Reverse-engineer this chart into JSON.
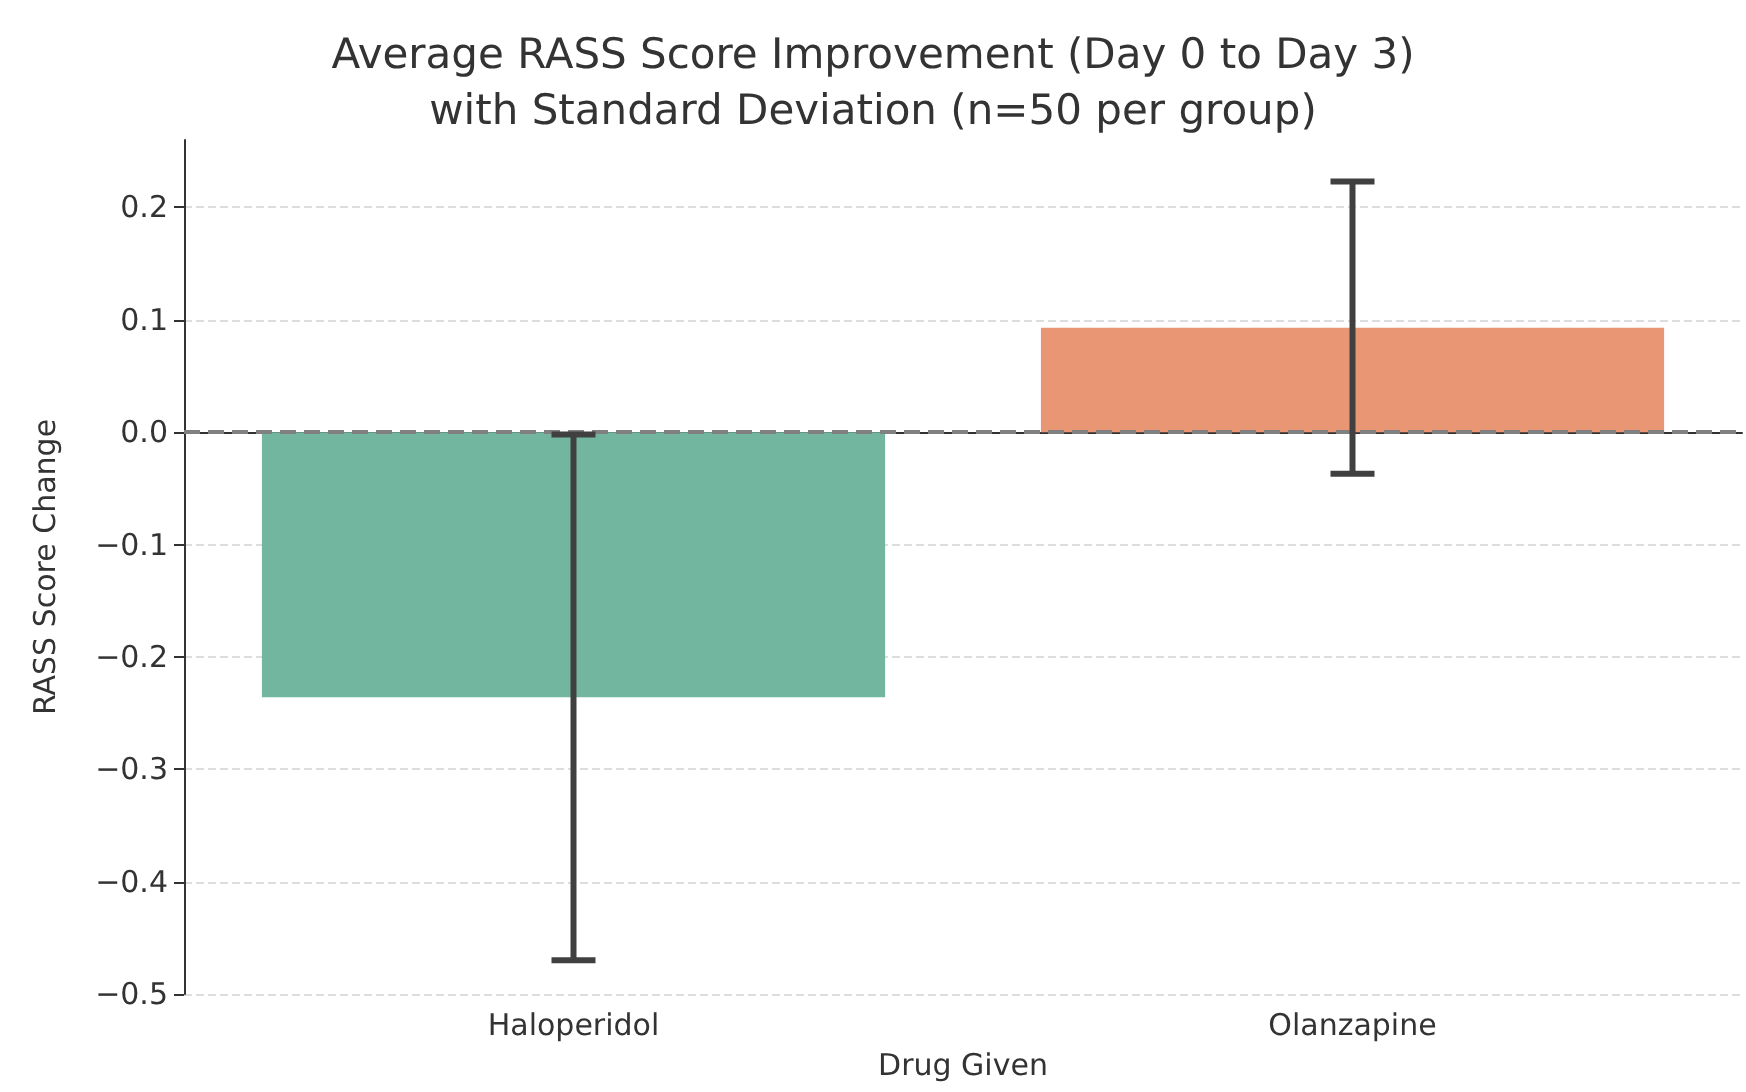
{
  "chart_data": {
    "type": "bar",
    "title": "Average RASS Score Improvement (Day 0 to Day 3)\nwith Standard Deviation (n=50 per group)",
    "xlabel": "Drug Given",
    "ylabel": "RASS Score Change",
    "categories": [
      "Haloperidol",
      "Olanzapine"
    ],
    "values": [
      -0.236,
      0.093
    ],
    "colors": [
      "#73b6a0",
      "#e99675"
    ],
    "errors": [
      0.234,
      0.13
    ],
    "ylim": [
      -0.5,
      0.26
    ],
    "yticks": [
      {
        "value": -0.5,
        "label": "−0.5"
      },
      {
        "value": -0.4,
        "label": "−0.4"
      },
      {
        "value": -0.3,
        "label": "−0.3"
      },
      {
        "value": -0.2,
        "label": "−0.2"
      },
      {
        "value": -0.1,
        "label": "−0.1"
      },
      {
        "value": 0,
        "label": "0.0"
      },
      {
        "value": 0.1,
        "label": "0.1"
      },
      {
        "value": 0.2,
        "label": "0.2"
      }
    ],
    "ref_lines": [
      {
        "axis": "y",
        "value": 0,
        "color": "#808080",
        "line_style": "dashed"
      }
    ],
    "grid": "y"
  }
}
